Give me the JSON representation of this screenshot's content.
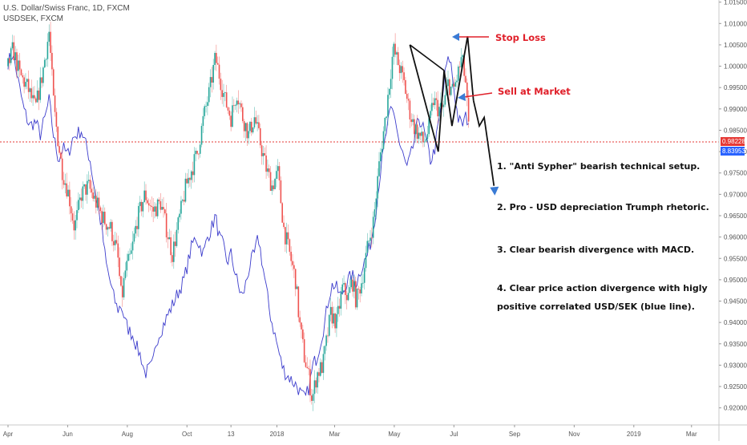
{
  "header": {
    "main_symbol": "U.S. Dollar/Swiss Franc, 1D, FXCM",
    "compare_symbol": "USDSEK, FXCM"
  },
  "colors": {
    "up": "#26a69a",
    "down": "#ef5350",
    "compare_line": "#3c3ccc",
    "price_line": "#e53935",
    "pattern": "#111111",
    "arrow_blue": "#3a7bd5",
    "label_red": "#e0202a",
    "badge_red": "#e53935",
    "badge_blue": "#2962ff"
  },
  "annotations": {
    "stop_loss": "Stop Loss",
    "sell_at_market": "Sell at Market",
    "point1": "1. \"Anti Sypher\" bearish technical setup.",
    "point2": "2. Pro - USD depreciation Trumph rhetoric.",
    "point3": "3. Clear bearish divergence with MACD.",
    "point4_line1": "4. Clear price action divergence with higly",
    "point4_line2": "positive correlated USD/SEK (blue line)."
  },
  "price_badges": {
    "current": "0.98228",
    "compare": "8.83953"
  },
  "chart_data": {
    "type": "candlestick",
    "y_axis": {
      "ylim": [
        0.916,
        1.0155
      ],
      "ticks": [
        "1.01500",
        "1.01000",
        "1.00500",
        "1.00000",
        "0.99500",
        "0.99000",
        "0.98500",
        "0.98000",
        "0.97500",
        "0.97000",
        "0.96500",
        "0.96000",
        "0.95500",
        "0.95000",
        "0.94500",
        "0.94000",
        "0.93500",
        "0.93000",
        "0.92500",
        "0.92000"
      ],
      "position": "right"
    },
    "x_axis": {
      "ticks": [
        {
          "label": "Apr",
          "day": 0
        },
        {
          "label": "Jun",
          "day": 61
        },
        {
          "label": "Aug",
          "day": 122
        },
        {
          "label": "Oct",
          "day": 183
        },
        {
          "label": "13",
          "day": 228
        },
        {
          "label": "2018",
          "day": 275
        },
        {
          "label": "Mar",
          "day": 334
        },
        {
          "label": "May",
          "day": 395
        },
        {
          "label": "Jul",
          "day": 456
        },
        {
          "label": "Sep",
          "day": 518
        },
        {
          "label": "Nov",
          "day": 579
        },
        {
          "label": "2019",
          "day": 640
        },
        {
          "label": "Mar",
          "day": 699
        }
      ]
    },
    "main_series": {
      "name": "U.S. Dollar/Swiss Franc",
      "last": 0.98228,
      "keypoints": [
        [
          0,
          1.0
        ],
        [
          5,
          1.004
        ],
        [
          12,
          0.998
        ],
        [
          20,
          0.995
        ],
        [
          28,
          0.99
        ],
        [
          35,
          0.998
        ],
        [
          42,
          1.008
        ],
        [
          47,
          0.99
        ],
        [
          55,
          0.976
        ],
        [
          62,
          0.97
        ],
        [
          68,
          0.962
        ],
        [
          75,
          0.97
        ],
        [
          82,
          0.972
        ],
        [
          90,
          0.968
        ],
        [
          98,
          0.964
        ],
        [
          105,
          0.962
        ],
        [
          112,
          0.956
        ],
        [
          116,
          0.945
        ],
        [
          120,
          0.952
        ],
        [
          126,
          0.956
        ],
        [
          132,
          0.964
        ],
        [
          140,
          0.97
        ],
        [
          148,
          0.966
        ],
        [
          156,
          0.968
        ],
        [
          162,
          0.962
        ],
        [
          168,
          0.956
        ],
        [
          175,
          0.964
        ],
        [
          182,
          0.972
        ],
        [
          188,
          0.976
        ],
        [
          194,
          0.98
        ],
        [
          200,
          0.988
        ],
        [
          206,
          0.994
        ],
        [
          212,
          1.002
        ],
        [
          216,
          0.998
        ],
        [
          222,
          0.992
        ],
        [
          228,
          0.988
        ],
        [
          234,
          0.994
        ],
        [
          240,
          0.988
        ],
        [
          246,
          0.984
        ],
        [
          252,
          0.988
        ],
        [
          258,
          0.982
        ],
        [
          264,
          0.976
        ],
        [
          270,
          0.972
        ],
        [
          276,
          0.975
        ],
        [
          282,
          0.962
        ],
        [
          288,
          0.956
        ],
        [
          294,
          0.95
        ],
        [
          298,
          0.94
        ],
        [
          303,
          0.932
        ],
        [
          307,
          0.928
        ],
        [
          311,
          0.922
        ],
        [
          316,
          0.928
        ],
        [
          322,
          0.93
        ],
        [
          326,
          0.936
        ],
        [
          330,
          0.942
        ],
        [
          336,
          0.94
        ],
        [
          342,
          0.948
        ],
        [
          348,
          0.946
        ],
        [
          352,
          0.95
        ],
        [
          356,
          0.945
        ],
        [
          362,
          0.95
        ],
        [
          368,
          0.958
        ],
        [
          374,
          0.964
        ],
        [
          380,
          0.978
        ],
        [
          386,
          0.988
        ],
        [
          390,
          0.996
        ],
        [
          394,
          1.004
        ],
        [
          400,
          1.0
        ],
        [
          405,
          0.996
        ],
        [
          410,
          0.99
        ],
        [
          415,
          0.986
        ],
        [
          420,
          0.984
        ],
        [
          425,
          0.982
        ],
        [
          430,
          0.985
        ],
        [
          435,
          0.992
        ],
        [
          440,
          0.99
        ],
        [
          445,
          0.99
        ],
        [
          450,
          0.996
        ],
        [
          455,
          0.994
        ],
        [
          460,
          0.998
        ],
        [
          464,
          1.002
        ],
        [
          468,
          0.996
        ],
        [
          472,
          0.9823
        ]
      ]
    },
    "compare_series": {
      "name": "USDSEK",
      "last": 8.83953,
      "keypoints": [
        [
          0,
          1.001
        ],
        [
          5,
          1.003
        ],
        [
          10,
          0.997
        ],
        [
          16,
          0.99
        ],
        [
          22,
          0.986
        ],
        [
          28,
          0.987
        ],
        [
          33,
          0.984
        ],
        [
          38,
          0.988
        ],
        [
          42,
          0.992
        ],
        [
          47,
          0.983
        ],
        [
          52,
          0.978
        ],
        [
          56,
          0.981
        ],
        [
          61,
          0.979
        ],
        [
          66,
          0.983
        ],
        [
          70,
          0.984
        ],
        [
          75,
          0.985
        ],
        [
          79,
          0.982
        ],
        [
          84,
          0.978
        ],
        [
          88,
          0.972
        ],
        [
          92,
          0.967
        ],
        [
          96,
          0.962
        ],
        [
          100,
          0.954
        ],
        [
          104,
          0.95
        ],
        [
          108,
          0.946
        ],
        [
          112,
          0.943
        ],
        [
          116,
          0.944
        ],
        [
          120,
          0.94
        ],
        [
          124,
          0.938
        ],
        [
          128,
          0.937
        ],
        [
          132,
          0.934
        ],
        [
          136,
          0.932
        ],
        [
          140,
          0.928
        ],
        [
          144,
          0.929
        ],
        [
          148,
          0.93
        ],
        [
          152,
          0.936
        ],
        [
          156,
          0.938
        ],
        [
          160,
          0.94
        ],
        [
          164,
          0.942
        ],
        [
          168,
          0.944
        ],
        [
          172,
          0.946
        ],
        [
          176,
          0.948
        ],
        [
          180,
          0.95
        ],
        [
          184,
          0.954
        ],
        [
          188,
          0.958
        ],
        [
          192,
          0.96
        ],
        [
          196,
          0.958
        ],
        [
          200,
          0.956
        ],
        [
          204,
          0.96
        ],
        [
          208,
          0.962
        ],
        [
          212,
          0.965
        ],
        [
          216,
          0.96
        ],
        [
          220,
          0.958
        ],
        [
          224,
          0.954
        ],
        [
          228,
          0.956
        ],
        [
          232,
          0.952
        ],
        [
          236,
          0.948
        ],
        [
          240,
          0.946
        ],
        [
          244,
          0.95
        ],
        [
          248,
          0.954
        ],
        [
          252,
          0.956
        ],
        [
          256,
          0.96
        ],
        [
          260,
          0.954
        ],
        [
          264,
          0.948
        ],
        [
          268,
          0.942
        ],
        [
          272,
          0.938
        ],
        [
          276,
          0.934
        ],
        [
          280,
          0.93
        ],
        [
          284,
          0.928
        ],
        [
          288,
          0.927
        ],
        [
          292,
          0.926
        ],
        [
          296,
          0.925
        ],
        [
          300,
          0.923
        ],
        [
          304,
          0.922
        ],
        [
          308,
          0.925
        ],
        [
          312,
          0.93
        ],
        [
          316,
          0.932
        ],
        [
          320,
          0.936
        ],
        [
          324,
          0.94
        ],
        [
          328,
          0.946
        ],
        [
          332,
          0.949
        ],
        [
          336,
          0.948
        ],
        [
          340,
          0.946
        ],
        [
          344,
          0.948
        ],
        [
          348,
          0.95
        ],
        [
          352,
          0.951
        ],
        [
          356,
          0.949
        ],
        [
          360,
          0.952
        ],
        [
          364,
          0.954
        ],
        [
          368,
          0.956
        ],
        [
          372,
          0.96
        ],
        [
          376,
          0.966
        ],
        [
          380,
          0.974
        ],
        [
          384,
          0.98
        ],
        [
          388,
          0.986
        ],
        [
          392,
          0.99
        ],
        [
          396,
          0.988
        ],
        [
          400,
          0.982
        ],
        [
          404,
          0.979
        ],
        [
          408,
          0.976
        ],
        [
          412,
          0.979
        ],
        [
          416,
          0.983
        ],
        [
          420,
          0.988
        ],
        [
          424,
          0.986
        ],
        [
          428,
          0.982
        ],
        [
          432,
          0.978
        ],
        [
          436,
          0.98
        ],
        [
          440,
          0.986
        ],
        [
          444,
          0.992
        ],
        [
          448,
          1.0
        ],
        [
          452,
          1.002
        ],
        [
          456,
          0.995
        ],
        [
          460,
          0.988
        ],
        [
          464,
          0.986
        ],
        [
          468,
          0.988
        ],
        [
          472,
          0.987
        ]
      ]
    },
    "pattern": [
      [
        411,
        1.005
      ],
      [
        440,
        0.98
      ],
      [
        446,
        0.999
      ],
      [
        454,
        0.986
      ],
      [
        470,
        1.007
      ],
      [
        476,
        0.992
      ]
    ],
    "projection": [
      [
        476,
        0.992
      ],
      [
        482,
        0.986
      ],
      [
        487,
        0.988
      ],
      [
        497,
        0.972
      ]
    ]
  }
}
